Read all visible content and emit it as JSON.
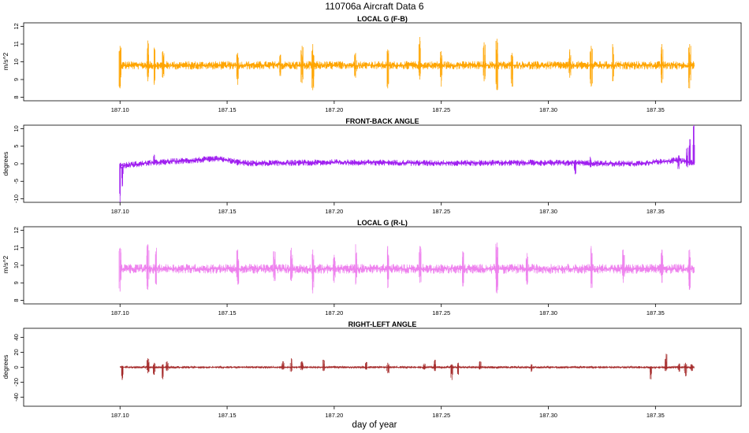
{
  "figure": {
    "title": "110706a   Aircraft Data 6",
    "xlabel": "day of year"
  },
  "chart_data": [
    {
      "type": "line",
      "title": "LOCAL G (F-B)",
      "ylabel": "m/s^2",
      "color": "#FFA500",
      "xlim": [
        187.055,
        187.39
      ],
      "ylim": [
        7.8,
        12.2
      ],
      "x_ticks": [
        "187.10",
        "187.15",
        "187.20",
        "187.25",
        "187.30",
        "187.35"
      ],
      "y_ticks": [
        "8",
        "9",
        "10",
        "11",
        "12"
      ],
      "series": [
        {
          "x_start": 187.1,
          "x_end": 187.368,
          "baseline": 9.8,
          "noise": 0.12,
          "spikes": [
            {
              "x": 187.1,
              "min": 8.5,
              "max": 10.9
            },
            {
              "x": 187.113,
              "min": 8.9,
              "max": 11.2
            },
            {
              "x": 187.116,
              "min": 8.7,
              "max": 10.8
            },
            {
              "x": 187.12,
              "min": 9.1,
              "max": 10.6
            },
            {
              "x": 187.155,
              "min": 8.7,
              "max": 10.5
            },
            {
              "x": 187.175,
              "min": 9.2,
              "max": 10.4
            },
            {
              "x": 187.185,
              "min": 8.8,
              "max": 10.9
            },
            {
              "x": 187.19,
              "min": 8.4,
              "max": 11.0
            },
            {
              "x": 187.21,
              "min": 9.1,
              "max": 10.5
            },
            {
              "x": 187.225,
              "min": 8.5,
              "max": 10.7
            },
            {
              "x": 187.24,
              "min": 9.0,
              "max": 11.4
            },
            {
              "x": 187.25,
              "min": 8.6,
              "max": 10.6
            },
            {
              "x": 187.27,
              "min": 8.9,
              "max": 11.1
            },
            {
              "x": 187.276,
              "min": 8.4,
              "max": 11.3
            },
            {
              "x": 187.283,
              "min": 8.6,
              "max": 10.5
            },
            {
              "x": 187.31,
              "min": 9.1,
              "max": 10.7
            },
            {
              "x": 187.32,
              "min": 8.6,
              "max": 10.9
            },
            {
              "x": 187.33,
              "min": 8.9,
              "max": 11.0
            },
            {
              "x": 187.353,
              "min": 8.8,
              "max": 11.0
            },
            {
              "x": 187.366,
              "min": 8.5,
              "max": 11.0
            }
          ]
        }
      ]
    },
    {
      "type": "line",
      "title": "FRONT-BACK ANGLE",
      "ylabel": "degrees",
      "color": "#A020F0",
      "xlim": [
        187.055,
        187.39
      ],
      "ylim": [
        -11,
        11
      ],
      "x_ticks": [
        "187.10",
        "187.15",
        "187.20",
        "187.25",
        "187.30",
        "187.35"
      ],
      "y_ticks": [
        "-10",
        "-5",
        "0",
        "5",
        "10"
      ],
      "series": [
        {
          "x_start": 187.1,
          "x_end": 187.368,
          "trend": [
            [
              187.1,
              -0.5
            ],
            [
              187.12,
              0.5
            ],
            [
              187.145,
              1.4
            ],
            [
              187.16,
              0.1
            ],
            [
              187.2,
              0.4
            ],
            [
              187.25,
              0.2
            ],
            [
              187.3,
              0.3
            ],
            [
              187.34,
              0.0
            ],
            [
              187.36,
              1.0
            ],
            [
              187.368,
              0.3
            ]
          ],
          "noise": 0.45,
          "spikes": [
            {
              "x": 187.1,
              "min": -11.0,
              "max": 0.0
            },
            {
              "x": 187.101,
              "min": -6.5,
              "max": -1.0
            },
            {
              "x": 187.116,
              "min": -0.3,
              "max": 2.6
            },
            {
              "x": 187.155,
              "min": -0.5,
              "max": 1.0
            },
            {
              "x": 187.3125,
              "min": -3.0,
              "max": 1.0
            },
            {
              "x": 187.3195,
              "min": -1.0,
              "max": 2.0
            },
            {
              "x": 187.361,
              "min": -1.5,
              "max": 2.4
            },
            {
              "x": 187.365,
              "min": -1.0,
              "max": 4.6
            },
            {
              "x": 187.366,
              "min": -0.5,
              "max": 7.0
            },
            {
              "x": 187.368,
              "min": 0.0,
              "max": 11.0
            }
          ]
        }
      ]
    },
    {
      "type": "line",
      "title": "LOCAL G (R-L)",
      "ylabel": "m/s^2",
      "color": "#EE82EE",
      "xlim": [
        187.055,
        187.39
      ],
      "ylim": [
        7.8,
        12.2
      ],
      "x_ticks": [
        "187.10",
        "187.15",
        "187.20",
        "187.25",
        "187.30",
        "187.35"
      ],
      "y_ticks": [
        "8",
        "9",
        "10",
        "11",
        "12"
      ],
      "series": [
        {
          "x_start": 187.1,
          "x_end": 187.368,
          "baseline": 9.8,
          "noise": 0.14,
          "spikes": [
            {
              "x": 187.1,
              "min": 8.5,
              "max": 11.0
            },
            {
              "x": 187.113,
              "min": 8.6,
              "max": 11.2
            },
            {
              "x": 187.117,
              "min": 8.9,
              "max": 11.0
            },
            {
              "x": 187.155,
              "min": 8.9,
              "max": 10.9
            },
            {
              "x": 187.172,
              "min": 9.1,
              "max": 10.8
            },
            {
              "x": 187.18,
              "min": 9.1,
              "max": 11.0
            },
            {
              "x": 187.19,
              "min": 8.4,
              "max": 10.9
            },
            {
              "x": 187.2,
              "min": 9.0,
              "max": 10.6
            },
            {
              "x": 187.21,
              "min": 8.9,
              "max": 11.2
            },
            {
              "x": 187.225,
              "min": 8.7,
              "max": 11.1
            },
            {
              "x": 187.24,
              "min": 9.0,
              "max": 11.1
            },
            {
              "x": 187.26,
              "min": 8.8,
              "max": 10.8
            },
            {
              "x": 187.276,
              "min": 8.4,
              "max": 11.3
            },
            {
              "x": 187.29,
              "min": 8.9,
              "max": 10.7
            },
            {
              "x": 187.32,
              "min": 8.7,
              "max": 11.1
            },
            {
              "x": 187.335,
              "min": 9.0,
              "max": 10.9
            },
            {
              "x": 187.353,
              "min": 9.0,
              "max": 10.9
            },
            {
              "x": 187.366,
              "min": 8.6,
              "max": 10.9
            }
          ]
        }
      ]
    },
    {
      "type": "line",
      "title": "RIGHT-LEFT ANGLE",
      "ylabel": "degrees",
      "color": "#A52A2A",
      "xlim": [
        187.055,
        187.39
      ],
      "ylim": [
        -52,
        52
      ],
      "x_ticks": [
        "187.10",
        "187.15",
        "187.20",
        "187.25",
        "187.30",
        "187.35"
      ],
      "y_ticks": [
        "-40",
        "-20",
        "0",
        "20",
        "40"
      ],
      "series": [
        {
          "x_start": 187.1,
          "x_end": 187.368,
          "baseline": 0.0,
          "noise": 0.7,
          "spikes": [
            {
              "x": 187.101,
              "min": -17.0,
              "max": 2.0
            },
            {
              "x": 187.113,
              "min": -8.0,
              "max": 12.0
            },
            {
              "x": 187.116,
              "min": -10.0,
              "max": 6.0
            },
            {
              "x": 187.12,
              "min": -16.0,
              "max": 4.0
            },
            {
              "x": 187.122,
              "min": -5.0,
              "max": 8.0
            },
            {
              "x": 187.176,
              "min": -3.0,
              "max": 8.0
            },
            {
              "x": 187.18,
              "min": -6.0,
              "max": 12.0
            },
            {
              "x": 187.185,
              "min": -4.0,
              "max": 8.0
            },
            {
              "x": 187.195,
              "min": -5.0,
              "max": 10.0
            },
            {
              "x": 187.215,
              "min": -3.0,
              "max": 7.0
            },
            {
              "x": 187.225,
              "min": -8.0,
              "max": 6.0
            },
            {
              "x": 187.242,
              "min": -3.0,
              "max": 5.0
            },
            {
              "x": 187.247,
              "min": -5.0,
              "max": 10.0
            },
            {
              "x": 187.255,
              "min": -17.0,
              "max": 4.0
            },
            {
              "x": 187.258,
              "min": -10.0,
              "max": 6.0
            },
            {
              "x": 187.268,
              "min": -3.0,
              "max": 8.0
            },
            {
              "x": 187.292,
              "min": -6.0,
              "max": 4.0
            },
            {
              "x": 187.348,
              "min": -16.0,
              "max": 1.0
            },
            {
              "x": 187.355,
              "min": -5.0,
              "max": 18.0
            },
            {
              "x": 187.361,
              "min": -6.0,
              "max": 5.0
            },
            {
              "x": 187.364,
              "min": -12.0,
              "max": 6.0
            },
            {
              "x": 187.367,
              "min": -5.0,
              "max": 4.0
            }
          ]
        }
      ]
    }
  ]
}
